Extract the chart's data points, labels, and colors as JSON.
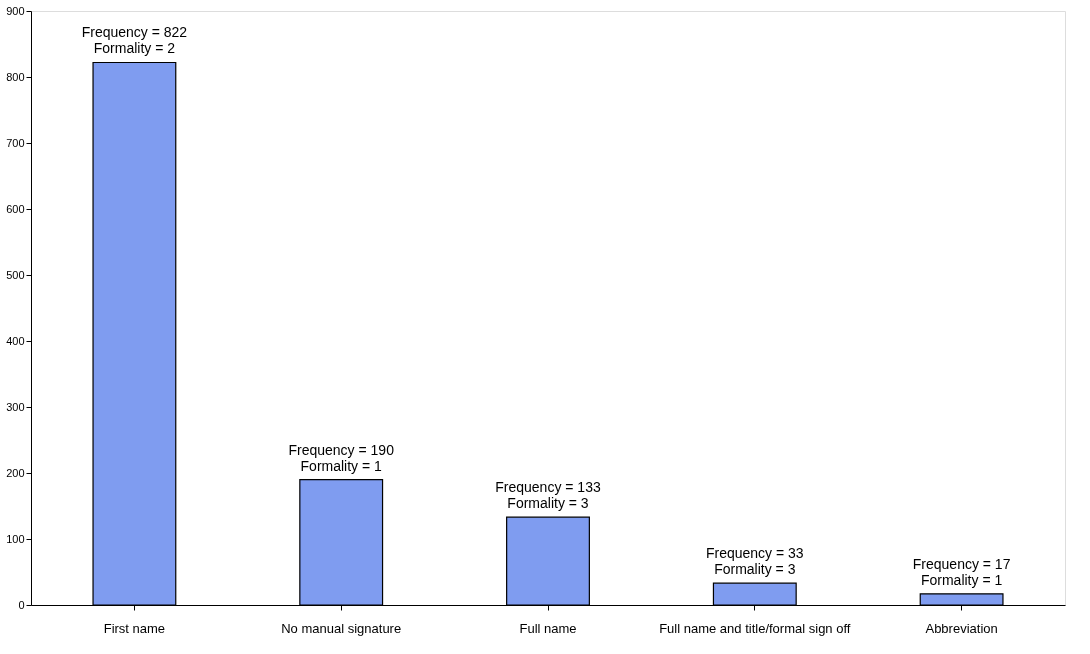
{
  "chart_data": {
    "type": "bar",
    "categories": [
      "First name",
      "No manual signature",
      "Full name",
      "Full name  and title/formal sign off",
      "Abbreviation"
    ],
    "values": [
      822,
      190,
      133,
      33,
      17
    ],
    "value_labels": [
      "Frequency = 822\nFormality = 2",
      "Frequency = 190\nFormality = 1",
      "Frequency = 133\nFormality = 3",
      "Frequency = 33\nFormality = 3",
      "Frequency = 17\nFormality = 1"
    ],
    "color": "#7f9cf0",
    "ylim": [
      0,
      900
    ],
    "yticks": [
      0,
      100,
      200,
      300,
      400,
      500,
      600,
      700,
      800,
      900
    ],
    "grid": false
  }
}
